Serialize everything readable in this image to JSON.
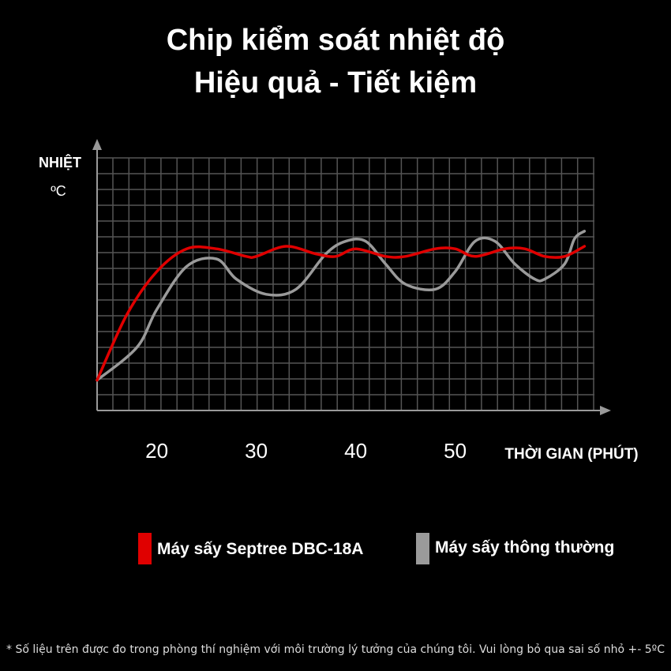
{
  "header": {
    "title_line1": "Chip kiểm soát nhiệt độ",
    "title_line2": "Hiệu quả - Tiết kiệm"
  },
  "chart_data": {
    "type": "line",
    "ylabel": "NHIỆT",
    "yunit": "ºC",
    "xlabel": "THỜI GIAN (PHÚT)",
    "x_ticks": [
      "20",
      "30",
      "40",
      "50"
    ],
    "xlim": [
      14,
      64
    ],
    "grid": true,
    "series": [
      {
        "name": "Máy sấy Septree DBC-18A",
        "color": "#e00000",
        "x": [
          14,
          17,
          20,
          23,
          26,
          29,
          30,
          33,
          36,
          38,
          40,
          43,
          45,
          48,
          50,
          52,
          55,
          57,
          59,
          61,
          63
        ],
        "y": [
          0.12,
          0.38,
          0.55,
          0.64,
          0.64,
          0.61,
          0.61,
          0.65,
          0.62,
          0.61,
          0.64,
          0.61,
          0.61,
          0.64,
          0.64,
          0.61,
          0.64,
          0.64,
          0.61,
          0.61,
          0.65
        ]
      },
      {
        "name": "Máy sấy thông thường",
        "color": "#9a9a9a",
        "x": [
          14,
          18,
          20,
          23,
          26,
          28,
          31,
          34,
          37,
          39,
          41,
          43,
          45,
          48,
          50,
          52,
          54,
          56,
          58,
          59,
          61,
          62,
          63
        ],
        "y": [
          0.12,
          0.25,
          0.4,
          0.57,
          0.6,
          0.52,
          0.46,
          0.48,
          0.62,
          0.67,
          0.67,
          0.58,
          0.5,
          0.48,
          0.55,
          0.67,
          0.67,
          0.58,
          0.52,
          0.52,
          0.58,
          0.68,
          0.71
        ]
      }
    ]
  },
  "legend": [
    {
      "label": "Máy sấy Septree DBC-18A",
      "color": "#e00000"
    },
    {
      "label": "Máy sấy thông thường",
      "color": "#9a9a9a"
    }
  ],
  "footnote": "* Số liệu trên được đo trong phòng thí nghiệm với môi trường lý tưởng của chúng tôi. Vui lòng bỏ qua sai số nhỏ +- 5ºC"
}
